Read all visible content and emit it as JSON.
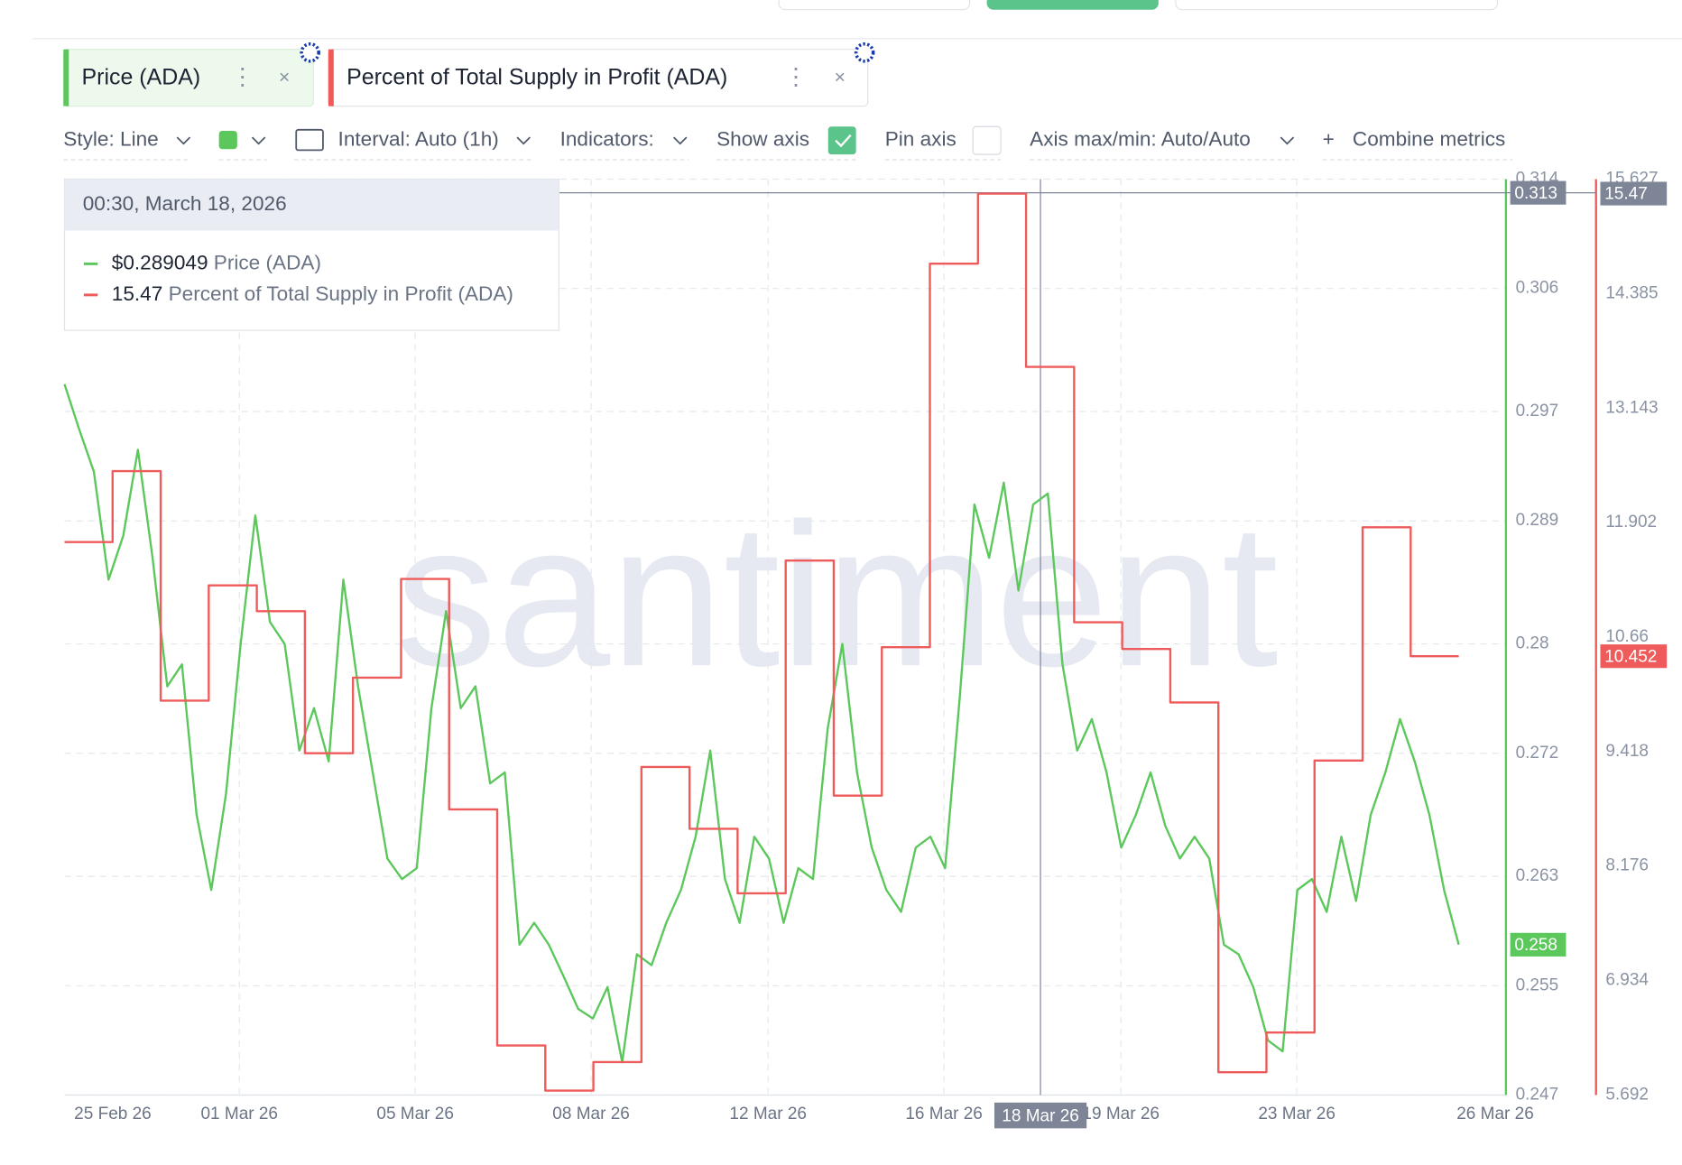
{
  "ui": {
    "tabs": [
      "Price (ADA)",
      "Percent of Total Supply in Profit (ADA)"
    ],
    "toolbar": {
      "style": "Style: Line",
      "interval": "Interval: Auto (1h)",
      "indicators": "Indicators:",
      "show_axis": "Show axis",
      "pin_axis": "Pin axis",
      "axis_range": "Axis max/min: Auto/Auto",
      "combine": "Combine metrics"
    },
    "watermark": "santiment",
    "tooltip": {
      "date": "00:30, March 18, 2026",
      "rows": [
        {
          "value": "$0.289049",
          "name": "Price (ADA)"
        },
        {
          "value": "15.47",
          "name": "Percent of Total Supply in Profit (ADA)"
        }
      ]
    }
  },
  "chart_data": {
    "type": "line",
    "x_tick_labels": [
      "25 Feb 26",
      "01 Mar 26",
      "05 Mar 26",
      "08 Mar 26",
      "12 Mar 26",
      "16 Mar 26",
      "19 Mar 26",
      "23 Mar 26",
      "26 Mar 26"
    ],
    "series": [
      {
        "name": "Price (ADA)",
        "color": "#5cc85c",
        "axis": "y",
        "values": [
          0.299,
          0.2957,
          0.2926,
          0.2847,
          0.2879,
          0.2942,
          0.2863,
          0.2769,
          0.2785,
          0.2675,
          0.262,
          0.269,
          0.28,
          0.2894,
          0.2816,
          0.28,
          0.2722,
          0.2753,
          0.2714,
          0.2847,
          0.2769,
          0.2706,
          0.2643,
          0.2628,
          0.2636,
          0.2753,
          0.2824,
          0.2753,
          0.2769,
          0.2698,
          0.2706,
          0.258,
          0.2596,
          0.258,
          0.2557,
          0.2533,
          0.2526,
          0.2549,
          0.2494,
          0.2573,
          0.2565,
          0.2596,
          0.262,
          0.2659,
          0.2722,
          0.2628,
          0.2596,
          0.2659,
          0.2643,
          0.2596,
          0.2636,
          0.2628,
          0.2738,
          0.28,
          0.2706,
          0.2651,
          0.262,
          0.2604,
          0.2651,
          0.2659,
          0.2636,
          0.2761,
          0.2902,
          0.2863,
          0.2918,
          0.2839,
          0.2902,
          0.291,
          0.2785,
          0.2722,
          0.2745,
          0.2706,
          0.2651,
          0.2675,
          0.2706,
          0.2667,
          0.2643,
          0.2659,
          0.2643,
          0.258,
          0.2573,
          0.2549,
          0.251,
          0.2502,
          0.262,
          0.2628,
          0.2604,
          0.2659,
          0.2612,
          0.2675,
          0.2706,
          0.2745,
          0.2714,
          0.2675,
          0.262,
          0.258
        ]
      },
      {
        "name": "Percent of Total Supply in Profit (ADA)",
        "color": "#ef5b5b",
        "axis": "y2",
        "step": true,
        "values": [
          11.69,
          12.46,
          9.97,
          11.22,
          10.94,
          9.4,
          10.22,
          11.29,
          8.79,
          6.23,
          5.74,
          6.05,
          9.25,
          8.58,
          7.88,
          11.49,
          8.94,
          10.55,
          14.71,
          15.47,
          13.59,
          10.82,
          10.53,
          9.95,
          5.94,
          6.37,
          9.32,
          11.85,
          10.452
        ]
      }
    ],
    "ylim": [
      0.247,
      0.314
    ],
    "yticks": [
      0.314,
      0.306,
      0.297,
      0.289,
      0.28,
      0.272,
      0.263,
      0.255,
      0.247
    ],
    "y2lim": [
      5.692,
      15.627
    ],
    "y2ticks": [
      15.627,
      14.385,
      13.143,
      11.902,
      10.66,
      9.418,
      8.176,
      6.934,
      5.692
    ],
    "grid": true,
    "badges": [
      {
        "axis": "y",
        "value": 0.313,
        "color": "#7d8597"
      },
      {
        "axis": "y",
        "value": 0.258,
        "color": "#5cc85c"
      },
      {
        "axis": "y2",
        "value": 15.47,
        "color": "#7d8597"
      },
      {
        "axis": "y2",
        "value": 10.452,
        "color": "#ef5b5b"
      }
    ],
    "crosshair": {
      "value": 0.313,
      "date": "18 Mar 26"
    }
  }
}
